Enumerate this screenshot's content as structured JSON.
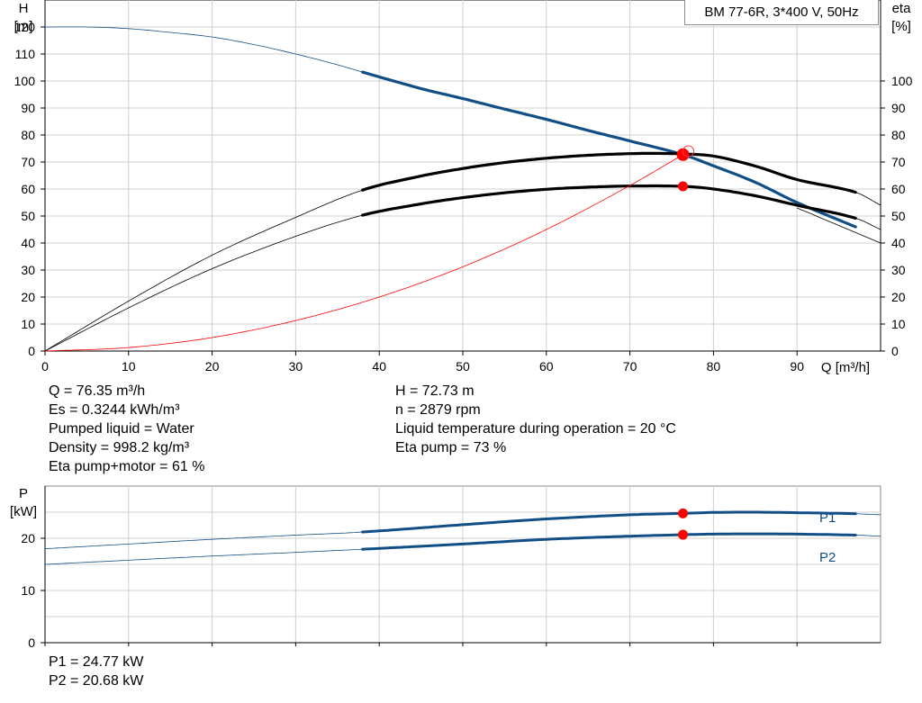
{
  "chart_data": [
    {
      "type": "line",
      "title": "BM 77-6R, 3*400 V, 50Hz",
      "xlabel": "Q [m³/h]",
      "ylabel_left": [
        "H",
        "[m]"
      ],
      "ylabel_right": [
        "eta",
        "[%]"
      ],
      "xlim": [
        0,
        100
      ],
      "ylim": [
        0,
        130
      ],
      "x_ticks": [
        "0",
        "10",
        "20",
        "30",
        "40",
        "50",
        "60",
        "70",
        "80",
        "90"
      ],
      "y_ticks_left": [
        "0",
        "10",
        "20",
        "30",
        "40",
        "50",
        "60",
        "70",
        "80",
        "90",
        "100",
        "110",
        "120"
      ],
      "y_ticks_right": [
        "0",
        "10",
        "20",
        "30",
        "40",
        "50",
        "60",
        "70",
        "80",
        "90",
        "100"
      ],
      "grid": true,
      "series": [
        {
          "id": "head",
          "color": "#114e85",
          "x": [
            0,
            5,
            10,
            15,
            20,
            25,
            30,
            35,
            38,
            45,
            50,
            55,
            60,
            65,
            70,
            76.35,
            80,
            85,
            90,
            97
          ],
          "values": [
            120,
            120,
            119.4,
            118,
            116.3,
            113.5,
            110,
            106,
            103.3,
            97.2,
            93.5,
            89.6,
            85.8,
            81.7,
            77.8,
            72.73,
            68.6,
            62.5,
            55,
            46
          ],
          "operating_range": [
            38,
            97
          ]
        },
        {
          "id": "eta_pump",
          "color": "#000000",
          "x": [
            0,
            10,
            20,
            30,
            38,
            45,
            50,
            55,
            60,
            65,
            70,
            73,
            76.35,
            80,
            85,
            90,
            97,
            100
          ],
          "values": [
            0,
            18.5,
            35.5,
            49.5,
            59.6,
            64.8,
            67.6,
            69.8,
            71.4,
            72.5,
            73.1,
            73.2,
            73,
            72.2,
            68.5,
            63.5,
            58.8,
            54
          ],
          "operating_range": [
            38,
            97
          ]
        },
        {
          "id": "eta_pump_motor",
          "color": "#000000",
          "x": [
            0,
            10,
            20,
            30,
            38,
            45,
            50,
            55,
            60,
            65,
            70,
            76.35,
            80,
            85,
            90,
            97,
            100
          ],
          "values": [
            0,
            16,
            30.5,
            42.5,
            50.3,
            54.5,
            56.8,
            58.6,
            59.9,
            60.7,
            61.1,
            61,
            60,
            57.5,
            54,
            49.2,
            45
          ],
          "operating_range": [
            38,
            97
          ]
        },
        {
          "id": "system_curve",
          "color": "#ff0000",
          "x": [
            0,
            10,
            20,
            30,
            40,
            50,
            60,
            70,
            76.35,
            77
          ],
          "values": [
            0,
            1.3,
            5,
            11.3,
            20,
            31.2,
            45,
            61.3,
            72.73,
            74
          ]
        },
        {
          "id": "extra_curve",
          "color": "#000000",
          "x": [
            90,
            100
          ],
          "values": [
            53,
            40
          ]
        }
      ],
      "operating_points": [
        {
          "x": 76.35,
          "y": 72.73
        },
        {
          "x": 76.35,
          "y": 61
        }
      ]
    },
    {
      "type": "line",
      "ylabel": [
        "P",
        "[kW]"
      ],
      "xlim": [
        0,
        100
      ],
      "ylim": [
        0,
        30
      ],
      "y_ticks": [
        "0",
        "10",
        "20"
      ],
      "grid": true,
      "series": [
        {
          "name": "P1",
          "color": "#114e85",
          "x": [
            0,
            10,
            20,
            30,
            38,
            50,
            60,
            70,
            76.35,
            80,
            85,
            90,
            97,
            100
          ],
          "values": [
            18,
            18.9,
            19.8,
            20.6,
            21.2,
            22.6,
            23.7,
            24.5,
            24.77,
            24.95,
            25,
            24.9,
            24.7,
            24.5
          ],
          "operating_range": [
            38,
            97
          ]
        },
        {
          "name": "P2",
          "color": "#114e85",
          "x": [
            0,
            10,
            20,
            30,
            38,
            50,
            60,
            70,
            76.35,
            80,
            85,
            90,
            97,
            100
          ],
          "values": [
            15,
            15.8,
            16.6,
            17.3,
            17.9,
            18.9,
            19.8,
            20.4,
            20.68,
            20.8,
            20.85,
            20.8,
            20.6,
            20.4
          ],
          "operating_range": [
            38,
            97
          ]
        }
      ],
      "operating_points": [
        {
          "x": 76.35,
          "y": 24.77
        },
        {
          "x": 76.35,
          "y": 20.68
        }
      ]
    }
  ],
  "info_left": [
    "Q = 76.35 m³/h",
    "Es = 0.3244 kWh/m³",
    "Pumped liquid = Water",
    "Density = 998.2 kg/m³",
    "Eta pump+motor = 61 %"
  ],
  "info_right": [
    "H = 72.73 m",
    "n = 2879 rpm",
    "Liquid temperature during operation = 20 °C",
    "Eta pump = 73 %"
  ],
  "info_power": [
    "P1 = 24.77 kW",
    "P2 = 20.68 kW"
  ]
}
